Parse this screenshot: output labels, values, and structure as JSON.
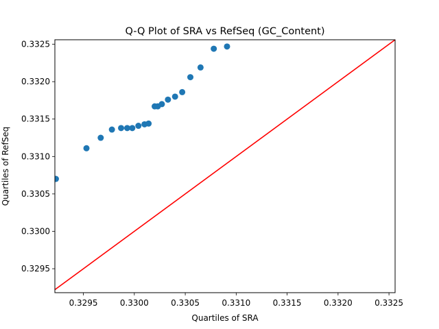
{
  "chart_data": {
    "type": "scatter",
    "title": "Q-Q Plot of SRA vs RefSeq (GC_Content)",
    "xlabel": "Quartiles of SRA",
    "ylabel": "Quartiles of RefSeq",
    "xlim": [
      0.32922,
      0.33256
    ],
    "ylim": [
      0.32918,
      0.33256
    ],
    "xticks": [
      0.3295,
      0.33,
      0.3305,
      0.331,
      0.3315,
      0.332,
      0.3325
    ],
    "xtick_labels": [
      "0.3295",
      "0.3300",
      "0.3305",
      "0.3310",
      "0.3315",
      "0.3320",
      "0.3325"
    ],
    "yticks": [
      0.3295,
      0.33,
      0.3305,
      0.331,
      0.3315,
      0.332,
      0.3325
    ],
    "ytick_labels": [
      "0.3295",
      "0.3300",
      "0.3305",
      "0.3310",
      "0.3315",
      "0.3320",
      "0.3325"
    ],
    "grid": false,
    "point_color": "#1f77b4",
    "reference_line_color": "#ff0000",
    "reference_line": "y = x",
    "series": [
      {
        "x": [
          0.32923,
          0.32953,
          0.32967,
          0.32978,
          0.32987,
          0.32993,
          0.32998,
          0.33004,
          0.3301,
          0.33014,
          0.3302,
          0.33023,
          0.33027,
          0.33033,
          0.3304,
          0.33047,
          0.33055,
          0.33065,
          0.33078,
          0.33091
        ],
        "y": [
          0.3307,
          0.33111,
          0.33125,
          0.33136,
          0.33138,
          0.33138,
          0.33138,
          0.33141,
          0.33143,
          0.33144,
          0.33167,
          0.33167,
          0.3317,
          0.33176,
          0.3318,
          0.33186,
          0.33206,
          0.33219,
          0.33244,
          0.33247
        ]
      }
    ]
  }
}
